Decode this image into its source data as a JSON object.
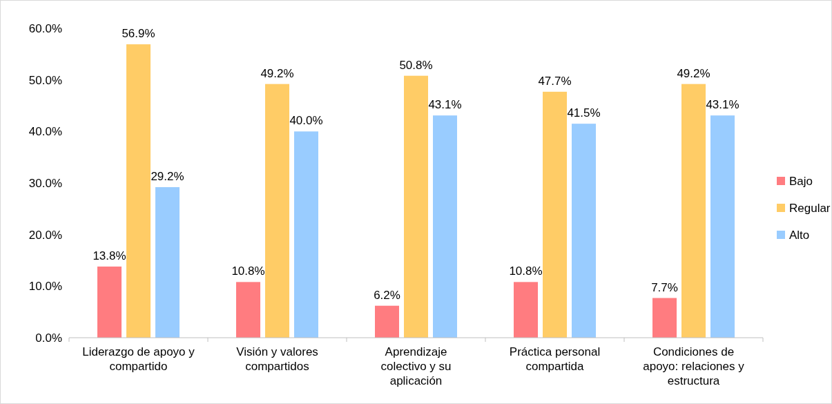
{
  "chart_data": {
    "type": "bar",
    "categories": [
      "Liderazgo de apoyo y compartido",
      "Visión y valores compartidos",
      "Aprendizaje colectivo y su aplicación",
      "Práctica personal compartida",
      "Condiciones de apoyo: relaciones y estructura"
    ],
    "series": [
      {
        "name": "Bajo",
        "color": "#ff7c80",
        "values": [
          13.8,
          10.8,
          6.2,
          10.8,
          7.7
        ],
        "value_labels": [
          "13.8%",
          "10.8%",
          "6.2%",
          "10.8%",
          "7.7%"
        ]
      },
      {
        "name": "Regular",
        "color": "#ffcc66",
        "values": [
          56.9,
          49.2,
          50.8,
          47.7,
          49.2
        ],
        "value_labels": [
          "56.9%",
          "49.2%",
          "50.8%",
          "47.7%",
          "49.2%"
        ]
      },
      {
        "name": "Alto",
        "color": "#99ccff",
        "values": [
          29.2,
          40.0,
          43.1,
          41.5,
          43.1
        ],
        "value_labels": [
          "29.2%",
          "40.0%",
          "43.1%",
          "41.5%",
          "43.1%"
        ]
      }
    ],
    "ylim": [
      0,
      60
    ],
    "yticks": [
      {
        "value": 0,
        "label": "0.0%"
      },
      {
        "value": 10,
        "label": "10.0%"
      },
      {
        "value": 20,
        "label": "20.0%"
      },
      {
        "value": 30,
        "label": "30.0%"
      },
      {
        "value": 40,
        "label": "40.0%"
      },
      {
        "value": 50,
        "label": "50.0%"
      },
      {
        "value": 60,
        "label": "60.0%"
      }
    ],
    "legend": "right",
    "grid": false
  }
}
